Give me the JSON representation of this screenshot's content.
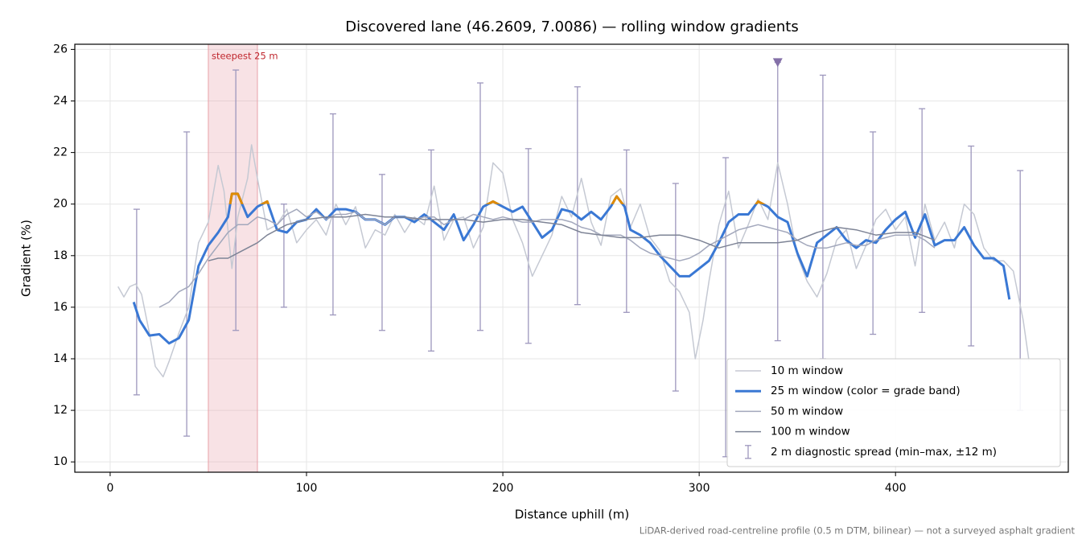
{
  "chart_data": {
    "type": "line",
    "title": "Discovered lane (46.2609, 7.0086) — rolling window gradients",
    "xlabel": "Distance uphill (m)",
    "ylabel": "Gradient (%)",
    "footnote": "LiDAR-derived road-centreline profile (0.5 m DTM, bilinear) — not a surveyed asphalt gradient",
    "xlim": [
      -18,
      488
    ],
    "ylim": [
      9.6,
      26.2
    ],
    "xticks": [
      0,
      100,
      200,
      300,
      400
    ],
    "yticks": [
      10,
      12,
      14,
      16,
      18,
      20,
      22,
      24,
      26
    ],
    "grid": true,
    "legend": "lower right",
    "series": [
      {
        "name": "10 m window",
        "color": "#c5c9d3",
        "width": 1.5,
        "x": [
          4,
          7,
          10,
          13,
          16,
          20,
          23,
          27,
          30,
          35,
          40,
          45,
          50,
          55,
          58,
          62,
          65,
          70,
          72,
          75,
          80,
          85,
          90,
          95,
          100,
          105,
          110,
          115,
          120,
          125,
          130,
          135,
          140,
          145,
          150,
          155,
          160,
          165,
          170,
          175,
          180,
          185,
          190,
          195,
          200,
          205,
          210,
          215,
          220,
          225,
          230,
          235,
          240,
          245,
          250,
          255,
          260,
          265,
          270,
          275,
          280,
          285,
          290,
          295,
          298,
          302,
          305,
          310,
          315,
          320,
          325,
          330,
          335,
          340,
          345,
          350,
          355,
          360,
          365,
          370,
          375,
          380,
          385,
          390,
          395,
          400,
          405,
          410,
          415,
          420,
          425,
          430,
          435,
          440,
          445,
          450,
          455,
          460,
          465,
          468
        ],
        "values": [
          16.8,
          16.4,
          16.8,
          16.9,
          16.5,
          15.0,
          13.7,
          13.3,
          13.9,
          15.0,
          16.0,
          18.5,
          19.3,
          21.5,
          20.5,
          17.5,
          19.5,
          21.0,
          22.3,
          21.0,
          19.0,
          19.2,
          19.8,
          18.5,
          19.0,
          19.4,
          18.8,
          20.0,
          19.2,
          19.9,
          18.3,
          19.0,
          18.8,
          19.6,
          18.9,
          19.5,
          19.2,
          20.7,
          18.6,
          19.4,
          19.5,
          18.3,
          19.1,
          21.6,
          21.2,
          19.4,
          18.5,
          17.2,
          18.0,
          18.8,
          20.3,
          19.5,
          21.0,
          19.3,
          18.4,
          20.3,
          20.6,
          19.1,
          20.0,
          18.7,
          18.2,
          17.0,
          16.6,
          15.8,
          14.0,
          15.5,
          17.0,
          19.2,
          20.5,
          18.3,
          19.2,
          20.2,
          19.4,
          21.6,
          20.0,
          18.0,
          17.0,
          16.4,
          17.3,
          18.6,
          19.0,
          17.5,
          18.4,
          19.4,
          19.8,
          19.0,
          19.5,
          17.6,
          20.0,
          18.6,
          19.3,
          18.3,
          20.0,
          19.6,
          18.3,
          17.8,
          17.8,
          17.4,
          15.5,
          13.9
        ]
      },
      {
        "name": "25 m window (color = grade band)",
        "color": "#3a78d4",
        "width": 3,
        "band_color": "#e08a00",
        "band_threshold": 20,
        "x": [
          12,
          15,
          20,
          25,
          30,
          35,
          40,
          45,
          50,
          55,
          60,
          62,
          65,
          70,
          75,
          80,
          85,
          90,
          95,
          100,
          105,
          110,
          115,
          120,
          125,
          130,
          135,
          140,
          145,
          150,
          155,
          160,
          165,
          170,
          175,
          180,
          185,
          190,
          195,
          200,
          205,
          210,
          215,
          220,
          225,
          230,
          235,
          240,
          245,
          250,
          255,
          258,
          262,
          265,
          270,
          275,
          280,
          285,
          290,
          295,
          300,
          305,
          310,
          315,
          320,
          325,
          330,
          335,
          340,
          345,
          350,
          355,
          360,
          365,
          370,
          375,
          380,
          385,
          390,
          395,
          400,
          405,
          410,
          415,
          420,
          425,
          430,
          435,
          440,
          445,
          450,
          455,
          458
        ],
        "values": [
          16.2,
          15.5,
          14.9,
          14.95,
          14.6,
          14.8,
          15.5,
          17.6,
          18.4,
          18.9,
          19.5,
          20.4,
          20.4,
          19.5,
          19.9,
          20.1,
          19.0,
          18.9,
          19.3,
          19.4,
          19.8,
          19.4,
          19.8,
          19.8,
          19.7,
          19.4,
          19.4,
          19.2,
          19.5,
          19.5,
          19.3,
          19.6,
          19.3,
          19.0,
          19.6,
          18.6,
          19.2,
          19.9,
          20.1,
          19.9,
          19.7,
          19.9,
          19.3,
          18.7,
          19.0,
          19.8,
          19.7,
          19.4,
          19.7,
          19.4,
          19.9,
          20.3,
          19.9,
          19.0,
          18.8,
          18.5,
          18.0,
          17.6,
          17.2,
          17.2,
          17.5,
          17.8,
          18.5,
          19.3,
          19.6,
          19.6,
          20.1,
          19.9,
          19.5,
          19.3,
          18.1,
          17.2,
          18.5,
          18.8,
          19.1,
          18.6,
          18.3,
          18.6,
          18.5,
          19.0,
          19.4,
          19.7,
          18.7,
          19.6,
          18.4,
          18.6,
          18.6,
          19.1,
          18.4,
          17.9,
          17.9,
          17.6,
          16.3
        ]
      },
      {
        "name": "50 m window",
        "color": "#a3a8bc",
        "width": 1.5,
        "x": [
          25,
          30,
          35,
          40,
          45,
          50,
          55,
          60,
          65,
          70,
          75,
          80,
          85,
          90,
          95,
          100,
          105,
          110,
          115,
          120,
          125,
          130,
          135,
          140,
          145,
          150,
          155,
          160,
          165,
          170,
          175,
          180,
          185,
          190,
          195,
          200,
          205,
          210,
          215,
          220,
          225,
          230,
          235,
          240,
          245,
          250,
          255,
          260,
          265,
          270,
          275,
          280,
          285,
          290,
          295,
          300,
          305,
          310,
          315,
          320,
          325,
          330,
          335,
          340,
          345,
          350,
          355,
          360,
          365,
          370,
          375,
          380,
          385,
          390,
          395,
          400,
          405,
          410,
          415,
          420
        ],
        "values": [
          16.0,
          16.2,
          16.6,
          16.8,
          17.3,
          17.9,
          18.4,
          18.9,
          19.2,
          19.2,
          19.5,
          19.4,
          19.2,
          19.6,
          19.8,
          19.5,
          19.7,
          19.4,
          19.6,
          19.6,
          19.7,
          19.4,
          19.4,
          19.2,
          19.5,
          19.5,
          19.4,
          19.5,
          19.5,
          19.2,
          19.4,
          19.4,
          19.6,
          19.5,
          19.4,
          19.5,
          19.4,
          19.3,
          19.3,
          19.4,
          19.4,
          19.4,
          19.3,
          19.1,
          19.0,
          18.8,
          18.8,
          18.8,
          18.6,
          18.3,
          18.1,
          18.0,
          17.9,
          17.8,
          17.9,
          18.1,
          18.4,
          18.6,
          18.8,
          19.0,
          19.1,
          19.2,
          19.1,
          19.0,
          18.9,
          18.6,
          18.4,
          18.3,
          18.3,
          18.4,
          18.5,
          18.4,
          18.4,
          18.6,
          18.7,
          18.8,
          18.8,
          18.8,
          18.6,
          18.3
        ]
      },
      {
        "name": "100 m window",
        "color": "#7e8496",
        "width": 1.5,
        "x": [
          50,
          55,
          60,
          65,
          70,
          75,
          80,
          85,
          90,
          95,
          100,
          110,
          120,
          130,
          140,
          150,
          160,
          170,
          180,
          190,
          200,
          210,
          220,
          230,
          240,
          250,
          260,
          270,
          280,
          290,
          300,
          310,
          320,
          330,
          340,
          350,
          360,
          370,
          380,
          390,
          400,
          410,
          420
        ],
        "values": [
          17.8,
          17.9,
          17.9,
          18.1,
          18.3,
          18.5,
          18.8,
          19.0,
          19.2,
          19.3,
          19.4,
          19.5,
          19.5,
          19.6,
          19.5,
          19.5,
          19.4,
          19.4,
          19.4,
          19.3,
          19.4,
          19.4,
          19.3,
          19.2,
          18.9,
          18.8,
          18.7,
          18.7,
          18.8,
          18.8,
          18.6,
          18.3,
          18.5,
          18.5,
          18.5,
          18.6,
          18.9,
          19.1,
          19.0,
          18.8,
          18.9,
          18.9,
          18.6
        ]
      }
    ],
    "error_bars": {
      "name": "2 m diagnostic spread (min–max, ±12 m)",
      "color": "#9d97bd",
      "x": [
        13.5,
        39,
        64,
        88.5,
        113.5,
        138.5,
        163.5,
        188.5,
        213,
        238,
        263,
        288,
        313.5,
        340,
        363,
        388.5,
        413.5,
        438.5,
        463.5
      ],
      "low": [
        12.6,
        11.0,
        15.1,
        16.0,
        15.7,
        15.1,
        14.3,
        15.1,
        14.6,
        16.1,
        15.8,
        12.75,
        10.2,
        14.7,
        14.0,
        14.95,
        15.8,
        14.5,
        12.0
      ],
      "high": [
        19.8,
        22.8,
        25.2,
        20.0,
        23.5,
        21.15,
        22.1,
        24.7,
        22.15,
        24.55,
        22.1,
        20.8,
        21.8,
        25.5,
        25.0,
        22.8,
        23.7,
        22.25,
        21.3
      ]
    },
    "marker": {
      "x": 340,
      "y": 25.5,
      "color": "#8470a8"
    },
    "shaded_region": {
      "label": "steepest 25 m",
      "x": [
        50,
        75
      ],
      "color": "#e8a0a8",
      "label_color": "#c0282f"
    }
  }
}
